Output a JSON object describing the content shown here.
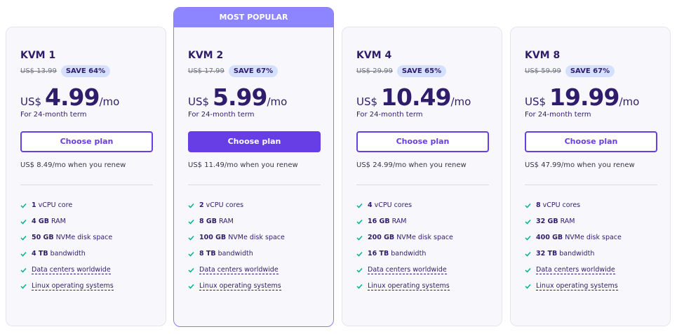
{
  "badge": "MOST POPULAR",
  "plans": [
    {
      "name": "KVM 1",
      "old_price": "US$ 13.99",
      "discount": "SAVE 64%",
      "currency": "US$",
      "price": "4.99",
      "period": "/mo",
      "term": "For 24-month term",
      "button": "Choose plan",
      "renewal": "US$ 8.49/mo when you renew",
      "features": [
        {
          "bold": "1",
          "text": "vCPU core"
        },
        {
          "bold": "4 GB",
          "text": "RAM"
        },
        {
          "bold": "50 GB",
          "text": "NVMe disk space"
        },
        {
          "bold": "4 TB",
          "text": "bandwidth"
        },
        {
          "text": "Data centers worldwide",
          "link": true
        },
        {
          "text": "Linux operating systems",
          "link": true
        }
      ]
    },
    {
      "name": "KVM 2",
      "old_price": "US$ 17.99",
      "discount": "SAVE 67%",
      "currency": "US$",
      "price": "5.99",
      "period": "/mo",
      "term": "For 24-month term",
      "button": "Choose plan",
      "renewal": "US$ 11.49/mo when you renew",
      "popular": true,
      "features": [
        {
          "bold": "2",
          "text": "vCPU cores"
        },
        {
          "bold": "8 GB",
          "text": "RAM"
        },
        {
          "bold": "100 GB",
          "text": "NVMe disk space"
        },
        {
          "bold": "8 TB",
          "text": "bandwidth"
        },
        {
          "text": "Data centers worldwide",
          "link": true
        },
        {
          "text": "Linux operating systems",
          "link": true
        }
      ]
    },
    {
      "name": "KVM 4",
      "old_price": "US$ 29.99",
      "discount": "SAVE 65%",
      "currency": "US$",
      "price": "10.49",
      "period": "/mo",
      "term": "For 24-month term",
      "button": "Choose plan",
      "renewal": "US$ 24.99/mo when you renew",
      "features": [
        {
          "bold": "4",
          "text": "vCPU cores"
        },
        {
          "bold": "16 GB",
          "text": "RAM"
        },
        {
          "bold": "200 GB",
          "text": "NVMe disk space"
        },
        {
          "bold": "16 TB",
          "text": "bandwidth"
        },
        {
          "text": "Data centers worldwide",
          "link": true
        },
        {
          "text": "Linux operating systems",
          "link": true
        }
      ]
    },
    {
      "name": "KVM 8",
      "old_price": "US$ 59.99",
      "discount": "SAVE 67%",
      "currency": "US$",
      "price": "19.99",
      "period": "/mo",
      "term": "For 24-month term",
      "button": "Choose plan",
      "renewal": "US$ 47.99/mo when you renew",
      "features": [
        {
          "bold": "8",
          "text": "vCPU cores"
        },
        {
          "bold": "32 GB",
          "text": "RAM"
        },
        {
          "bold": "400 GB",
          "text": "NVMe disk space"
        },
        {
          "bold": "32 TB",
          "text": "bandwidth"
        },
        {
          "text": "Data centers worldwide",
          "link": true
        },
        {
          "text": "Linux operating systems",
          "link": true
        }
      ]
    }
  ]
}
